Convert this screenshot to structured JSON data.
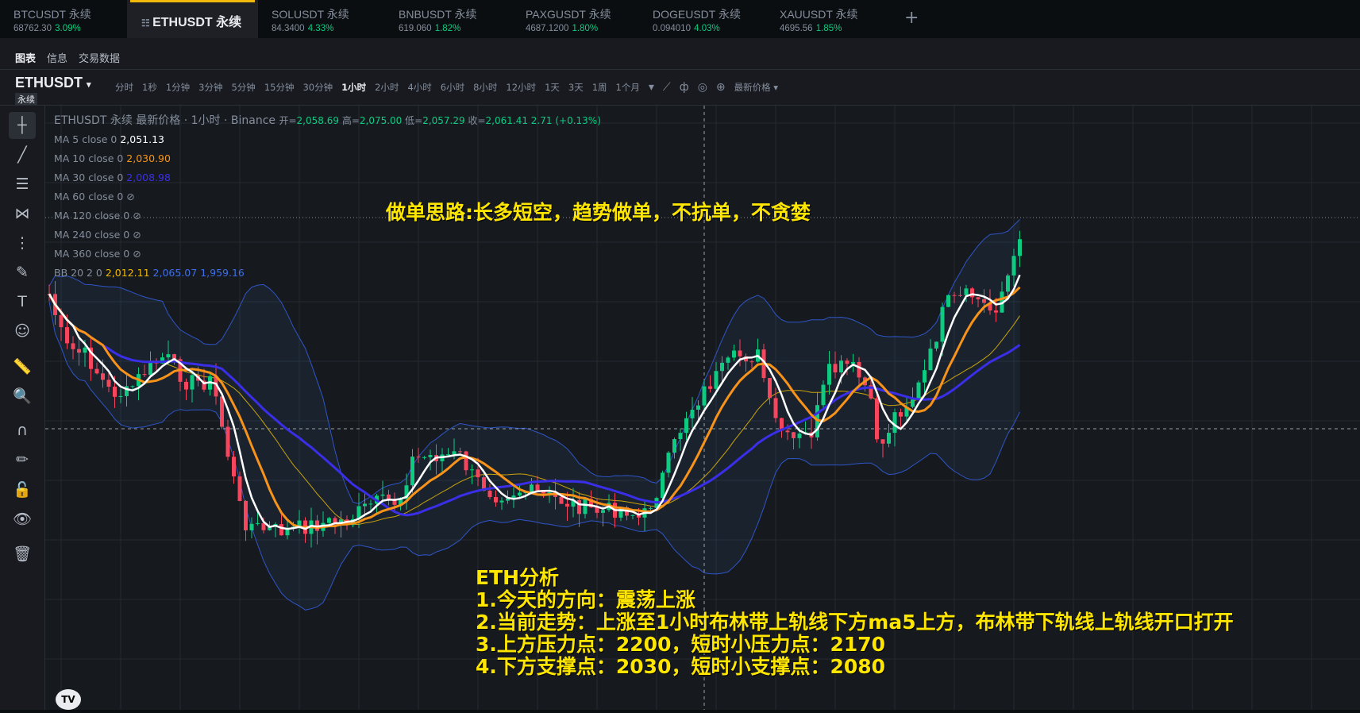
{
  "tabs": [
    {
      "symbol": "BTCUSDT 永续",
      "price": "68762.30",
      "change": "3.09%"
    },
    {
      "symbol": "ETHUSDT 永续",
      "active": true
    },
    {
      "symbol": "SOLUSDT 永续",
      "price": "84.3400",
      "change": "4.33%"
    },
    {
      "symbol": "BNBUSDT 永续",
      "price": "619.060",
      "change": "1.82%"
    },
    {
      "symbol": "PAXGUSDT 永续",
      "price": "4687.1200",
      "change": "1.80%"
    },
    {
      "symbol": "DOGEUSDT 永续",
      "price": "0.094010",
      "change": "4.03%"
    },
    {
      "symbol": "XAUUSDT 永续",
      "price": "4695.56",
      "change": "1.85%"
    }
  ],
  "add_tab": "+",
  "subtabs": [
    "图表",
    "信息",
    "交易数据"
  ],
  "toolbar": {
    "symbol": "ETHUSDT",
    "symbol_sub": "永续",
    "intervals": [
      "分时",
      "1秒",
      "1分钟",
      "3分钟",
      "5分钟",
      "15分钟",
      "30分钟",
      "1小时",
      "2小时",
      "4小时",
      "6小时",
      "8小时",
      "12小时",
      "1天",
      "3天",
      "1周",
      "1个月"
    ],
    "active_interval": "1小时",
    "price_type": "最新价格 ▾"
  },
  "legend": {
    "header": "ETHUSDT 永续 最新价格 · 1小时 · Binance",
    "open_label": "开=",
    "open": "2,058.69",
    "high_label": "高=",
    "high": "2,075.00",
    "low_label": "低=",
    "low": "2,057.29",
    "close_label": "收=",
    "close": "2,061.41",
    "change": "2.71 (+0.13%)",
    "mas": [
      {
        "label": "MA 5 close 0",
        "value": "2,051.13",
        "color": "#ffffff"
      },
      {
        "label": "MA 10 close 0",
        "value": "2,030.90",
        "color": "#f7931a"
      },
      {
        "label": "MA 30 close 0",
        "value": "2,008.98",
        "color": "#3a2ee8"
      },
      {
        "label": "MA 60 close 0",
        "hidden": true
      },
      {
        "label": "MA 120 close 0",
        "hidden": true
      },
      {
        "label": "MA 240 close 0",
        "hidden": true
      },
      {
        "label": "MA 360 close 0",
        "hidden": true
      }
    ],
    "bb": {
      "label": "BB 20 2 0",
      "basis": "2,012.11",
      "upper": "2,065.07",
      "lower": "1,959.16"
    }
  },
  "annotations": {
    "strategy": "做单思路:长多短空，趋势做单，不抗单，不贪婪",
    "analysis": [
      "ETH分析",
      "1.今天的方向：震荡上涨",
      "2.当前走势：上涨至1小时布林带上轨线下方ma5上方，布林带下轨线上轨线开口打开",
      "3.上方压力点：2200，短时小压力点：2170",
      "4.下方支撑点：2030，短时小支撑点：2080"
    ]
  },
  "colors": {
    "up": "#0ecb81",
    "down": "#f6465d",
    "accent": "#f0b90b",
    "annotation": "#ffe600"
  },
  "logo": "TV"
}
